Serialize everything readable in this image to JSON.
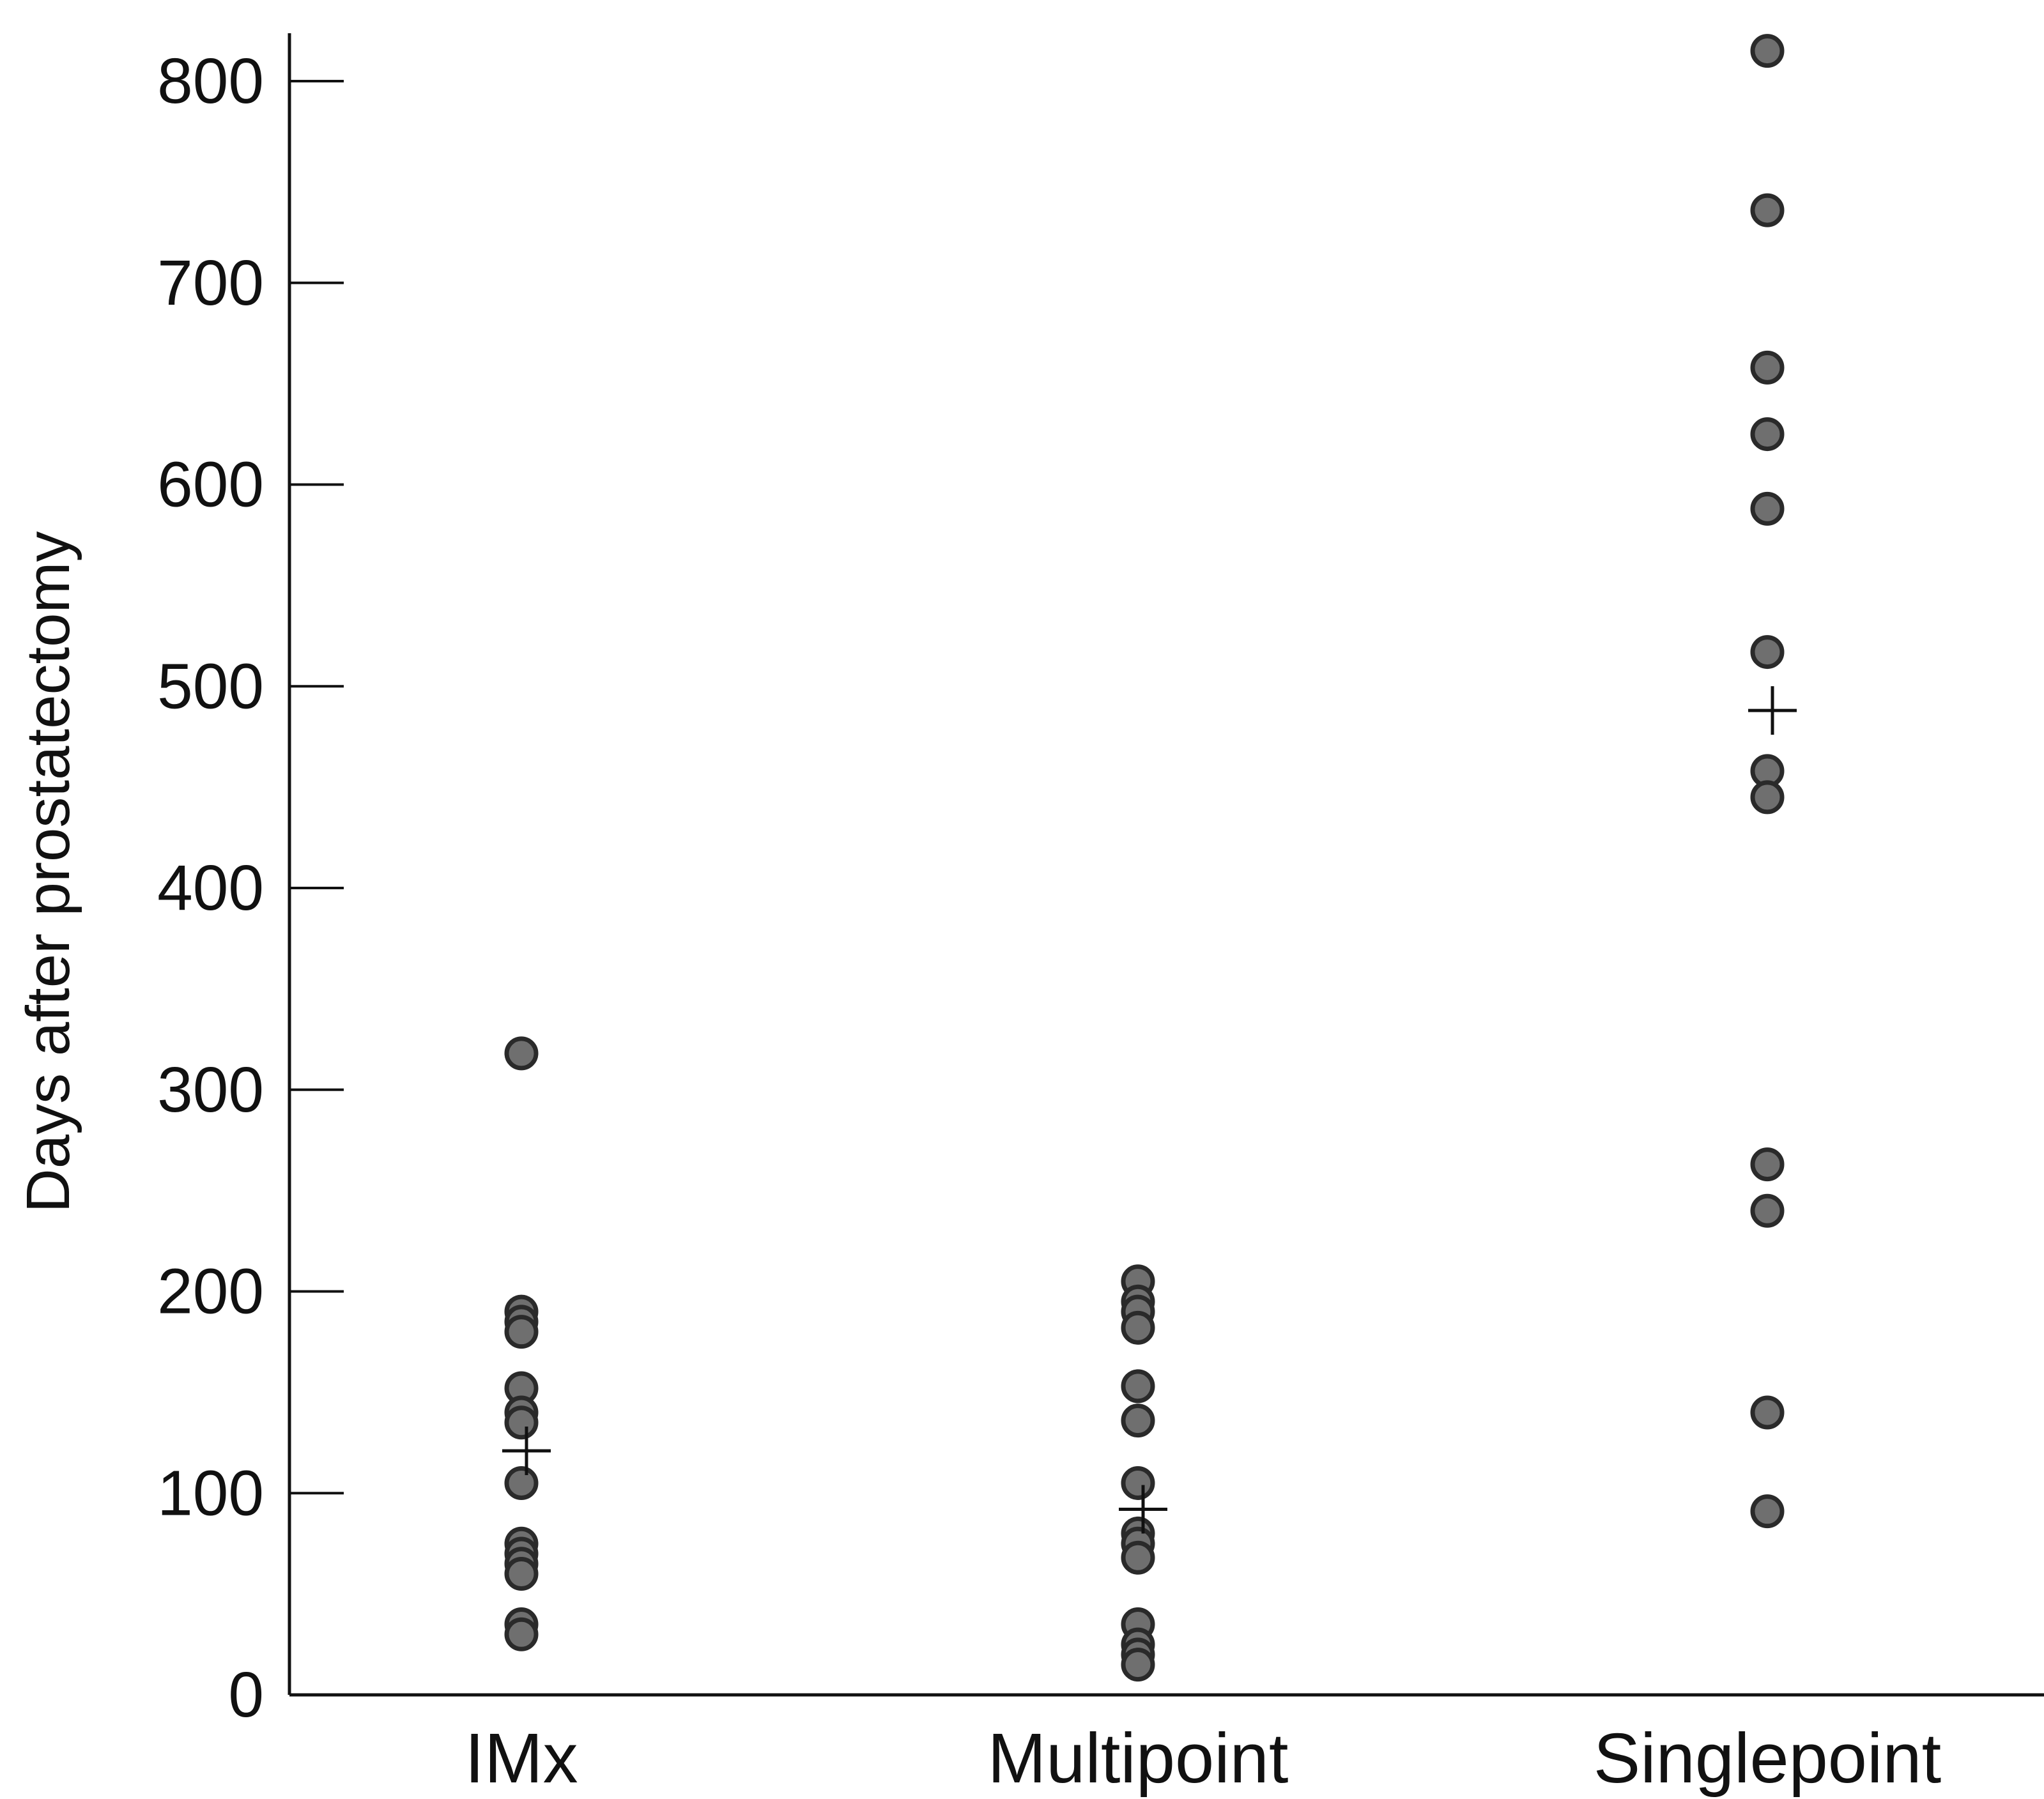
{
  "chart_data": {
    "type": "scatter",
    "title": "",
    "xlabel": "",
    "ylabel": "Days after prostatectomy",
    "ylim": [
      0,
      800
    ],
    "yticks": [
      0,
      100,
      200,
      300,
      400,
      500,
      600,
      700,
      800
    ],
    "grid": false,
    "categories": [
      "IMx",
      "Multipoint",
      "Singlepoint"
    ],
    "series": [
      {
        "category": "IMx",
        "values": [
          318,
          190,
          185,
          180,
          152,
          140,
          135,
          105,
          75,
          70,
          65,
          60,
          35,
          30
        ],
        "mean": 121
      },
      {
        "category": "Multipoint",
        "values": [
          205,
          195,
          190,
          182,
          153,
          136,
          105,
          80,
          75,
          68,
          35,
          25,
          20,
          15
        ],
        "mean": 92
      },
      {
        "category": "Singlepoint",
        "values": [
          815,
          736,
          658,
          625,
          588,
          517,
          458,
          445,
          263,
          240,
          140,
          91
        ],
        "mean": 488
      }
    ],
    "colors": {
      "point": "#6f6f6f",
      "point_stroke": "#2a2a2a",
      "axis": "#111111",
      "mean_marker": "#111111"
    }
  }
}
